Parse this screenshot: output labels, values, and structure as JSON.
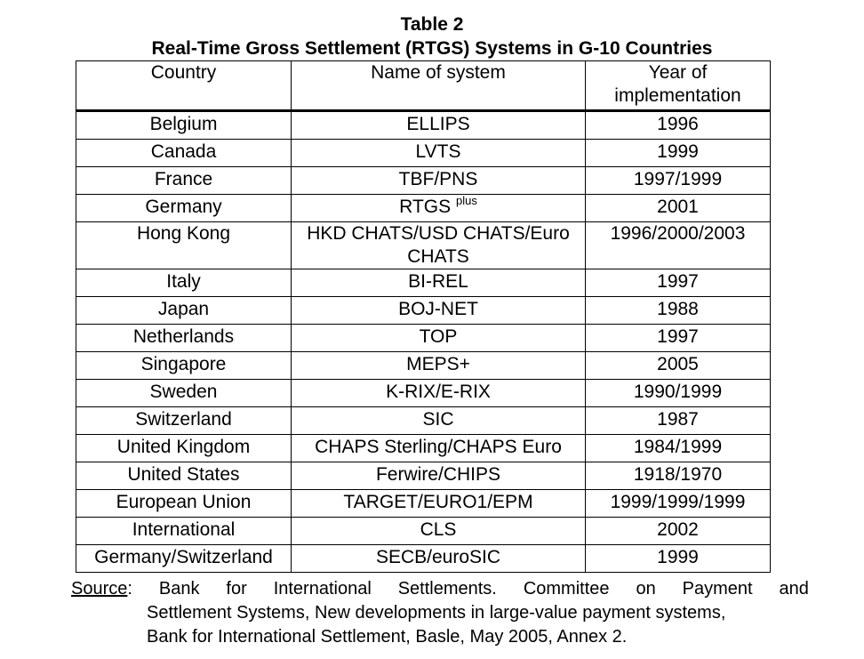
{
  "table": {
    "caption": "Table 2",
    "title": "Real-Time Gross Settlement (RTGS) Systems in G-10 Countries",
    "headers": [
      "Country",
      "Name of system",
      "Year of implementation"
    ],
    "rows": [
      {
        "country": "Belgium",
        "system": "ELLIPS",
        "system_sup": "",
        "year": "1996"
      },
      {
        "country": "Canada",
        "system": "LVTS",
        "system_sup": "",
        "year": "1999"
      },
      {
        "country": "France",
        "system": "TBF/PNS",
        "system_sup": "",
        "year": "1997/1999"
      },
      {
        "country": "Germany",
        "system": "RTGS ",
        "system_sup": "plus",
        "year": "2001"
      },
      {
        "country": "Hong Kong",
        "system": "HKD CHATS/USD CHATS/Euro CHATS",
        "system_sup": "",
        "year": "1996/2000/2003",
        "tall": true
      },
      {
        "country": "Italy",
        "system": "BI-REL",
        "system_sup": "",
        "year": "1997"
      },
      {
        "country": "Japan",
        "system": "BOJ-NET",
        "system_sup": "",
        "year": "1988"
      },
      {
        "country": "Netherlands",
        "system": "TOP",
        "system_sup": "",
        "year": "1997"
      },
      {
        "country": "Singapore",
        "system": "MEPS+",
        "system_sup": "",
        "year": "2005"
      },
      {
        "country": "Sweden",
        "system": "K-RIX/E-RIX",
        "system_sup": "",
        "year": "1990/1999"
      },
      {
        "country": "Switzerland",
        "system": "SIC",
        "system_sup": "",
        "year": "1987"
      },
      {
        "country": "United Kingdom",
        "system": "CHAPS Sterling/CHAPS Euro",
        "system_sup": "",
        "year": "1984/1999"
      },
      {
        "country": "United States",
        "system": "Ferwire/CHIPS",
        "system_sup": "",
        "year": "1918/1970"
      },
      {
        "country": "European Union",
        "system": "TARGET/EURO1/EPM",
        "system_sup": "",
        "year": "1999/1999/1999"
      },
      {
        "country": "International",
        "system": "CLS",
        "system_sup": "",
        "year": "2002"
      },
      {
        "country": "Germany/Switzerland",
        "system": "SECB/euroSIC",
        "system_sup": "",
        "year": "1999"
      }
    ]
  },
  "source": {
    "label": "Source",
    "line1_words": [
      ":",
      "Bank",
      "for",
      "International",
      "Settlements.",
      "Committee",
      "on",
      "Payment",
      "and"
    ],
    "line2": "Settlement Systems, New developments in large-value payment systems,",
    "line3": "Bank for International Settlement, Basle, May 2005, Annex 2."
  }
}
